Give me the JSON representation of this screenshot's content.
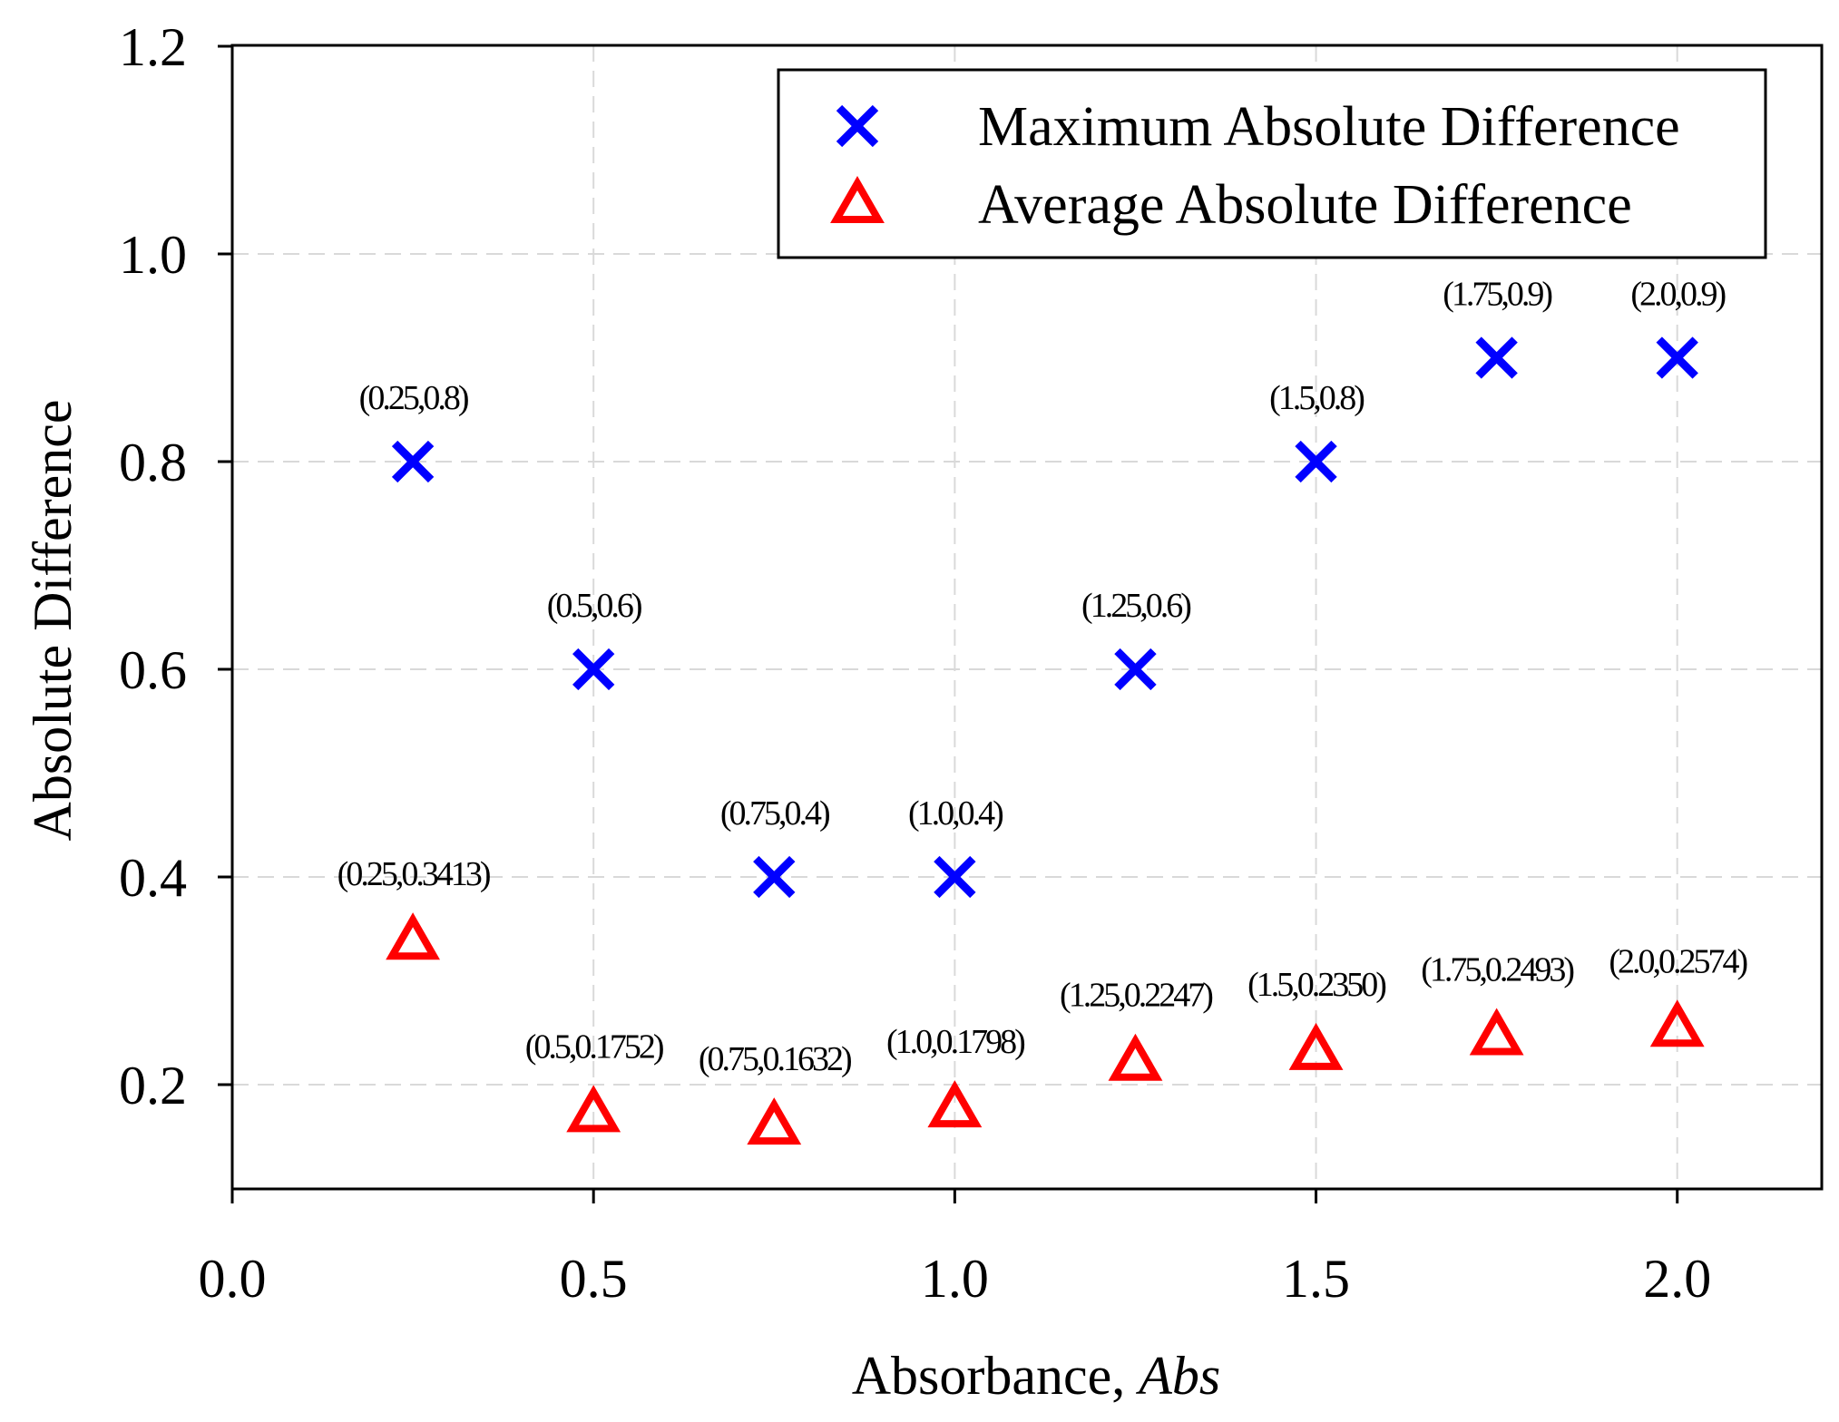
{
  "chart_data": {
    "type": "scatter",
    "xlabel": "Absorbance, ",
    "xlabel_italic": "Abs",
    "ylabel": "Absolute Difference",
    "xlim": [
      0.0,
      2.2
    ],
    "ylim": [
      0.1,
      1.2
    ],
    "grid": true,
    "legend_position": "top-right",
    "x_ticks": [
      "0.0",
      "0.5",
      "1.0",
      "1.5",
      "2.0"
    ],
    "y_ticks": [
      "0.2",
      "0.4",
      "0.6",
      "0.8",
      "1.0",
      "1.2"
    ],
    "series": [
      {
        "name": "Maximum Absolute Difference",
        "marker": "x",
        "color": "#0000ff",
        "points": [
          {
            "x": 0.25,
            "y": 0.8,
            "label": "(0.25,0.8)"
          },
          {
            "x": 0.5,
            "y": 0.6,
            "label": "(0.5,0.6)"
          },
          {
            "x": 0.75,
            "y": 0.4,
            "label": "(0.75,0.4)"
          },
          {
            "x": 1.0,
            "y": 0.4,
            "label": "(1.0,0.4)"
          },
          {
            "x": 1.25,
            "y": 0.6,
            "label": "(1.25,0.6)"
          },
          {
            "x": 1.5,
            "y": 0.8,
            "label": "(1.5,0.8)"
          },
          {
            "x": 1.75,
            "y": 0.9,
            "label": "(1.75,0.9)"
          },
          {
            "x": 2.0,
            "y": 0.9,
            "label": "(2.0,0.9)"
          }
        ]
      },
      {
        "name": "Average Absolute Difference",
        "marker": "triangle",
        "color": "#ff0000",
        "points": [
          {
            "x": 0.25,
            "y": 0.3413,
            "label": "(0.25,0.3413)"
          },
          {
            "x": 0.5,
            "y": 0.1752,
            "label": "(0.5,0.1752)"
          },
          {
            "x": 0.75,
            "y": 0.1632,
            "label": "(0.75,0.1632)"
          },
          {
            "x": 1.0,
            "y": 0.1798,
            "label": "(1.0,0.1798)"
          },
          {
            "x": 1.25,
            "y": 0.2247,
            "label": "(1.25,0.2247)"
          },
          {
            "x": 1.5,
            "y": 0.235,
            "label": "(1.5,0.2350)"
          },
          {
            "x": 1.75,
            "y": 0.2493,
            "label": "(1.75,0.2493)"
          },
          {
            "x": 2.0,
            "y": 0.2574,
            "label": "(2.0,0.2574)"
          }
        ]
      }
    ]
  }
}
